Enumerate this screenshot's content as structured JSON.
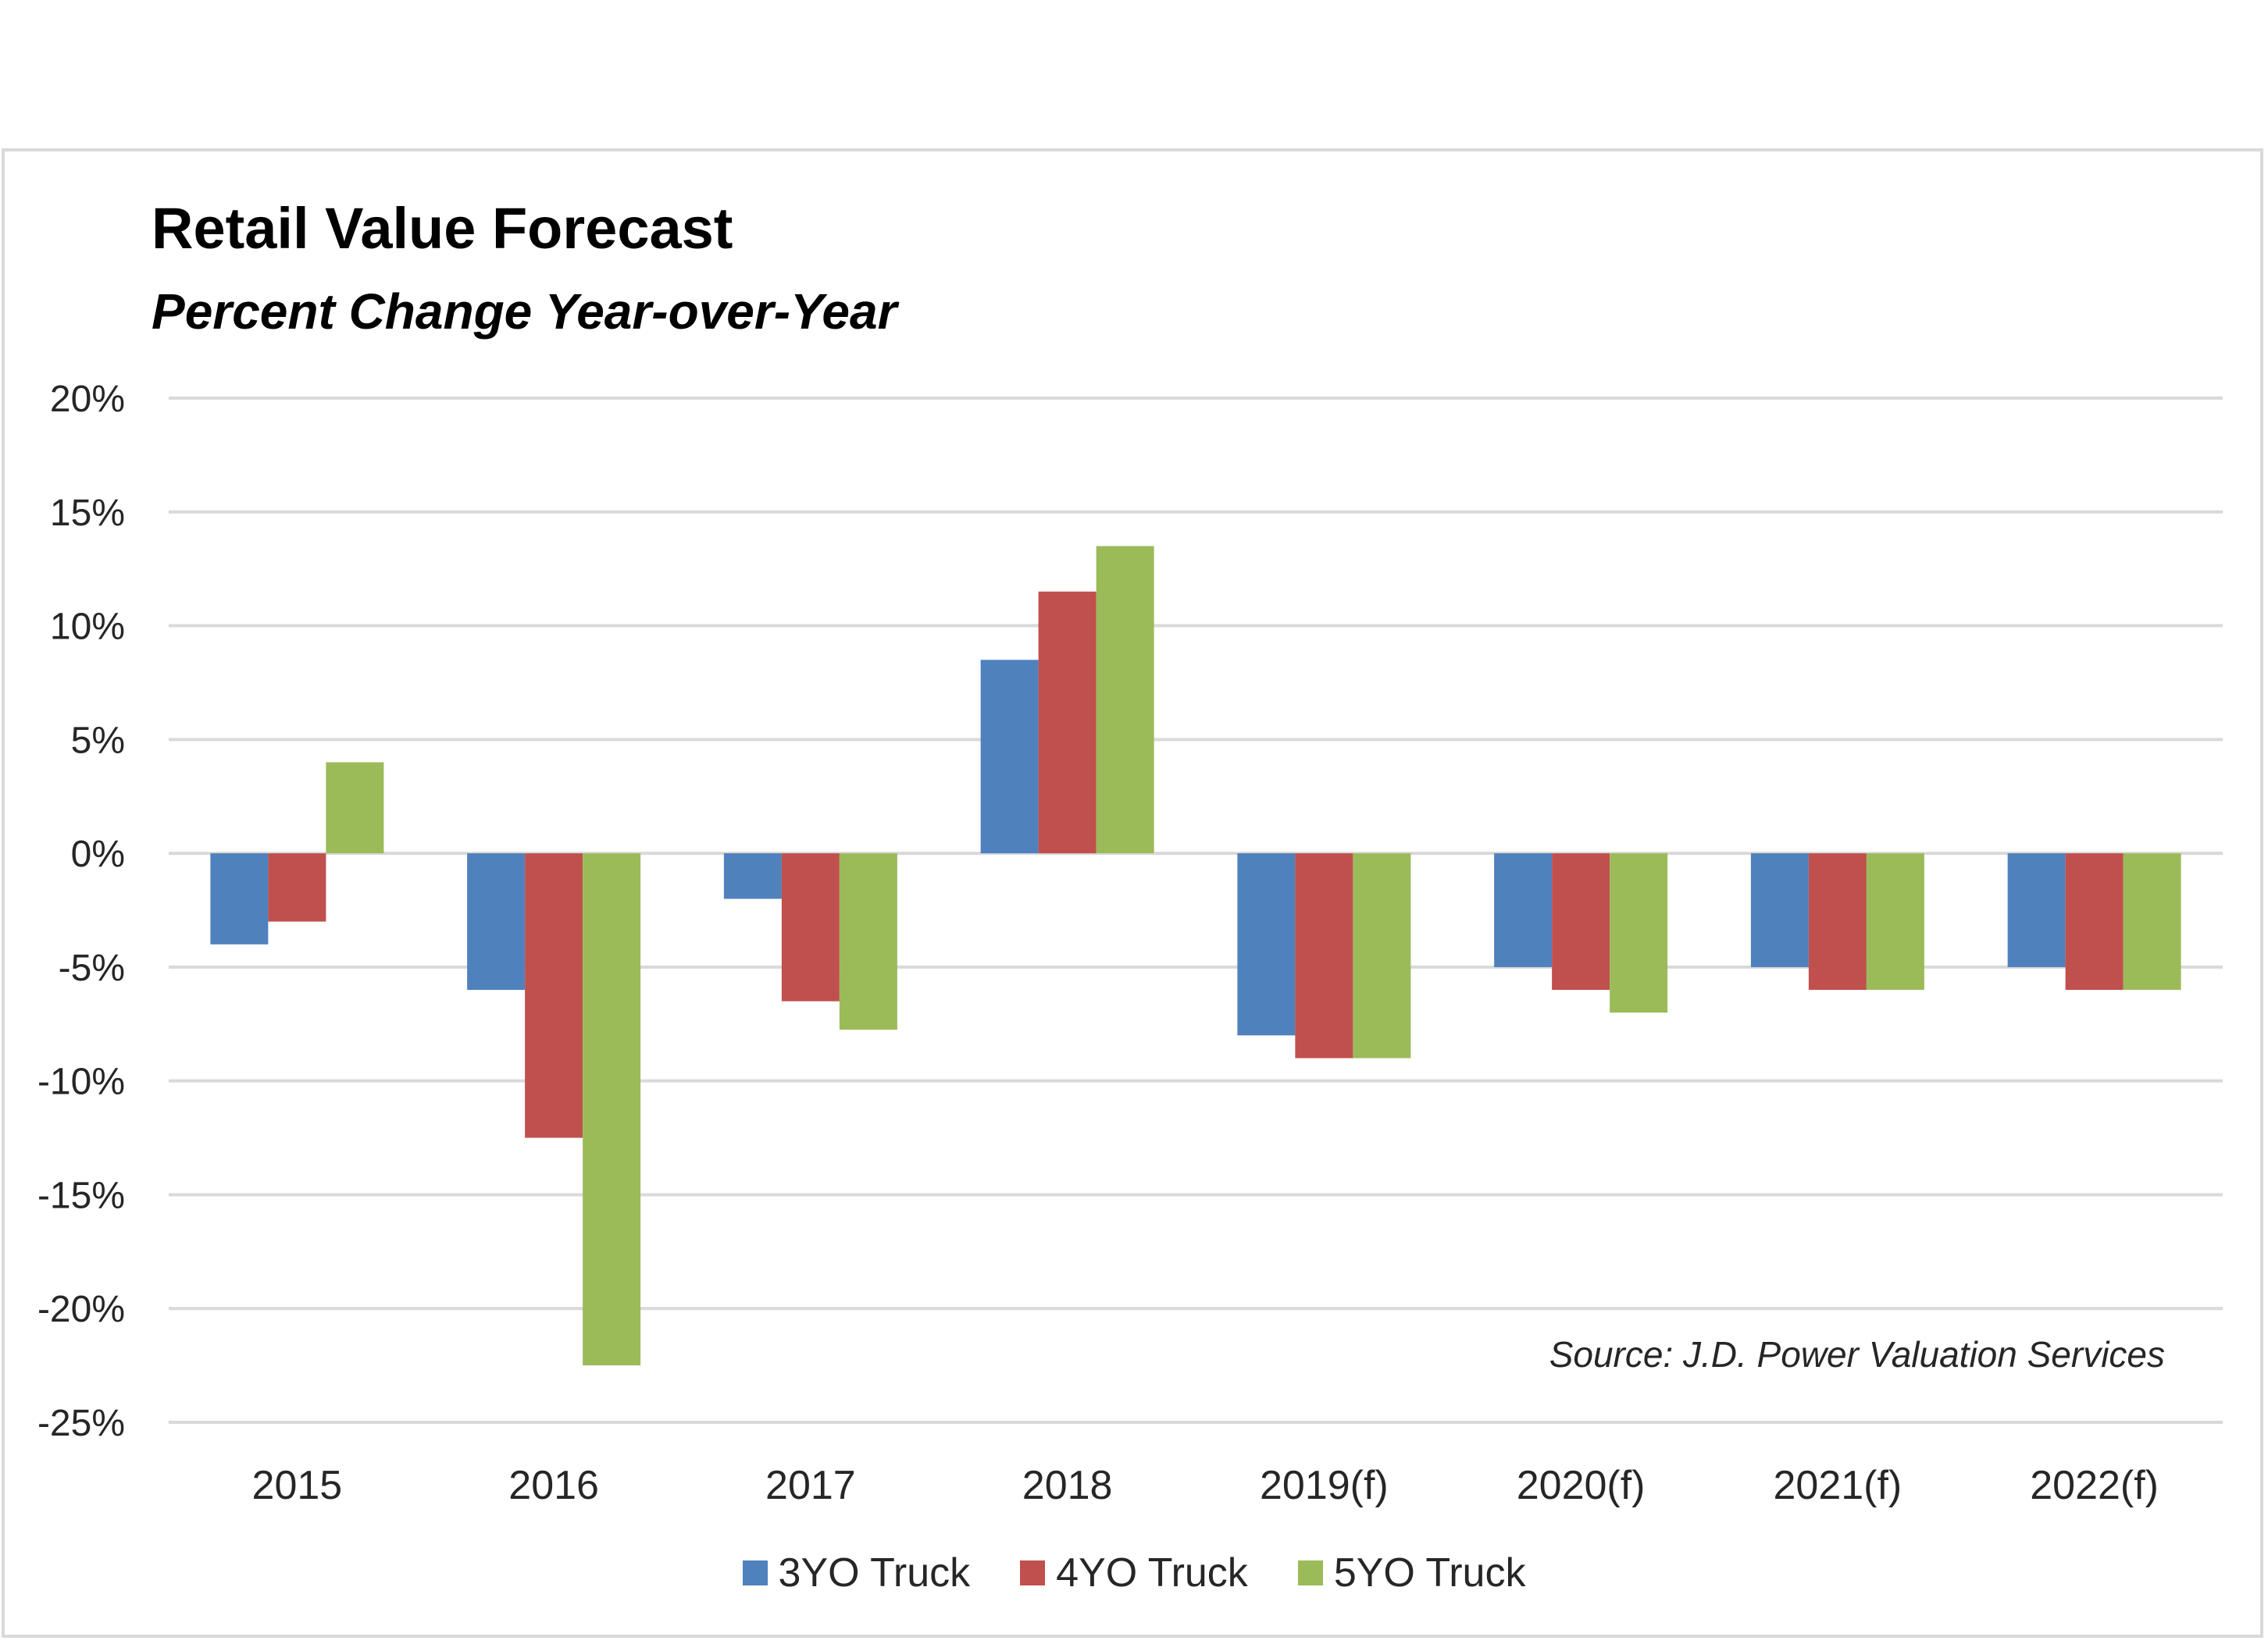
{
  "chart_data": {
    "type": "bar",
    "title": "Retail Value Forecast",
    "subtitle": "Percent Change Year-over-Year",
    "categories": [
      "2015",
      "2016",
      "2017",
      "2018",
      "2019(f)",
      "2020(f)",
      "2021(f)",
      "2022(f)"
    ],
    "series": [
      {
        "name": "3YO Truck",
        "color": "#4F81BD",
        "values": [
          -4,
          -6,
          -2,
          8.5,
          -8,
          -5,
          -5,
          -5
        ]
      },
      {
        "name": "4YO Truck",
        "color": "#C0504D",
        "values": [
          -3,
          -12.5,
          -6.5,
          11.5,
          -9,
          -6,
          -6,
          -6
        ]
      },
      {
        "name": "5YO Truck",
        "color": "#9BBB59",
        "values": [
          4,
          -22.5,
          -7.75,
          13.5,
          -9,
          -7,
          -6,
          -6
        ]
      }
    ],
    "ylim": [
      -25,
      20
    ],
    "yticks": [
      20,
      15,
      10,
      5,
      0,
      -5,
      -10,
      -15,
      -20,
      -25
    ],
    "ytick_labels": [
      "20%",
      "15%",
      "10%",
      "5%",
      "0%",
      "-5%",
      "-10%",
      "-15%",
      "-20%",
      "-25%"
    ],
    "xlabel": "",
    "ylabel": "",
    "grid": true,
    "legend_position": "bottom",
    "source_note": "Source: J.D. Power Valuation Services"
  }
}
